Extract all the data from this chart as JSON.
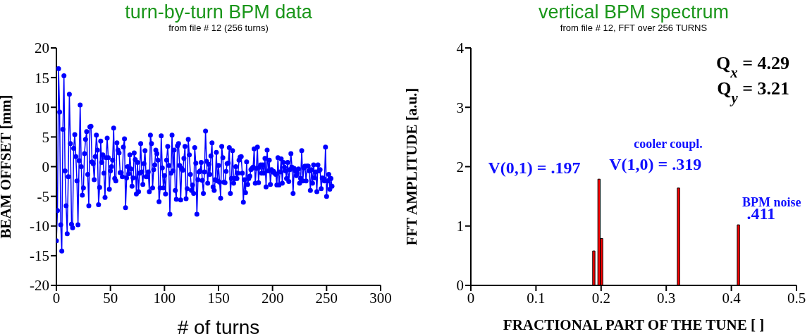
{
  "chart_data": [
    {
      "type": "line",
      "title": "turn-by-turn BPM data",
      "subtitle": "from file # 12 (256 turns)",
      "xlabel": "# of turns",
      "ylabel": "BEAM OFFSET  [mm]",
      "x": [
        0,
        1,
        2,
        3,
        4,
        5,
        6,
        7,
        8,
        9,
        10,
        11,
        12,
        13,
        14,
        15,
        16,
        17,
        18,
        19,
        20,
        21,
        22,
        23,
        24,
        25,
        26,
        27,
        28,
        29,
        30,
        31,
        32,
        33,
        34,
        35,
        36,
        37,
        38,
        39,
        40,
        41,
        42,
        43,
        44,
        45,
        46,
        47,
        48,
        49,
        50,
        51,
        52,
        53,
        54,
        55,
        56,
        57,
        58,
        59,
        60,
        61,
        62,
        63,
        64,
        65,
        66,
        67,
        68,
        69,
        70,
        71,
        72,
        73,
        74,
        75,
        76,
        77,
        78,
        79,
        80,
        81,
        82,
        83,
        84,
        85,
        86,
        87,
        88,
        89,
        90,
        91,
        92,
        93,
        94,
        95,
        96,
        97,
        98,
        99,
        100,
        101,
        102,
        103,
        104,
        105,
        106,
        107,
        108,
        109,
        110,
        111,
        112,
        113,
        114,
        115,
        116,
        117,
        118,
        119,
        120,
        121,
        122,
        123,
        124,
        125,
        126,
        127,
        128,
        129,
        130,
        131,
        132,
        133,
        134,
        135,
        136,
        137,
        138,
        139,
        140,
        141,
        142,
        143,
        144,
        145,
        146,
        147,
        148,
        149,
        150,
        151,
        152,
        153,
        154,
        155,
        156,
        157,
        158,
        159,
        160,
        161,
        162,
        163,
        164,
        165,
        166,
        167,
        168,
        169,
        170,
        171,
        172,
        173,
        174,
        175,
        176,
        177,
        178,
        179,
        180,
        181,
        182,
        183,
        184,
        185,
        186,
        187,
        188,
        189,
        190,
        191,
        192,
        193,
        194,
        195,
        196,
        197,
        198,
        199,
        200,
        201,
        202,
        203,
        204,
        205,
        206,
        207,
        208,
        209,
        210,
        211,
        212,
        213,
        214,
        215,
        216,
        217,
        218,
        219,
        220,
        221,
        222,
        223,
        224,
        225,
        226,
        227,
        228,
        229,
        230,
        231,
        232,
        233,
        234,
        235,
        236,
        237,
        238,
        239,
        240,
        241,
        242,
        243,
        244,
        245,
        246,
        247,
        248,
        249,
        250,
        251,
        252,
        253,
        254,
        255
      ],
      "series": [
        {
          "color": "#0000ff",
          "values": [
            -12.5,
            -7.4,
            16.5,
            9.2,
            -9.8,
            -14.2,
            6.3,
            15.3,
            -0.7,
            -6.6,
            -11.3,
            -1.7,
            12.2,
            3.9,
            -9.7,
            -10.3,
            3.1,
            5.4,
            1.7,
            -2.4,
            -9.8,
            1.0,
            10.4,
            0.0,
            -4.8,
            -3.6,
            2.2,
            4.6,
            5.9,
            -1.3,
            -6.6,
            6.7,
            6.8,
            0.8,
            0.5,
            -2.2,
            1.7,
            5.3,
            2.8,
            -6.4,
            -3.5,
            4.3,
            0.7,
            2.0,
            -1.1,
            -5.2,
            1.5,
            4.8,
            1.5,
            -3.8,
            -0.7,
            0.0,
            1.1,
            6.5,
            -2.0,
            -2.4,
            4.0,
            2.8,
            2.3,
            -1.0,
            -1.0,
            -1.7,
            3.3,
            4.7,
            -6.9,
            -1.9,
            0.0,
            -1.2,
            2.0,
            -0.4,
            -3.3,
            -1.9,
            2.3,
            1.2,
            -4.6,
            0.7,
            -4.2,
            -1.1,
            3.9,
            -0.9,
            -3.0,
            0.5,
            2.7,
            -1.7,
            -1.7,
            -0.9,
            -4.2,
            5.3,
            3.9,
            -3.6,
            -0.5,
            0.3,
            2.8,
            2.2,
            1.1,
            -5.9,
            -3.6,
            5.2,
            -0.2,
            -3.6,
            -1.5,
            -4.6,
            1.1,
            3.4,
            0.2,
            -8.0,
            -1.1,
            5.3,
            -0.7,
            2.8,
            -4.0,
            -5.5,
            3.5,
            3.9,
            0.2,
            -5.6,
            -0.3,
            -0.6,
            1.4,
            3.4,
            -5.4,
            -3.7,
            4.6,
            2.0,
            -1.3,
            -4.0,
            -3.1,
            -4.5,
            3.2,
            0.6,
            -8.0,
            -2.2,
            -0.9,
            -0.7,
            0.7,
            -2.3,
            -4.5,
            -0.9,
            6.0,
            0.9,
            -2.8,
            0.4,
            -1.3,
            1.8,
            4.0,
            -3.4,
            -4.0,
            -2.2,
            2.4,
            -2.4,
            0.2,
            -2.6,
            -5.3,
            3.4,
            1.5,
            -2.6,
            -2.7,
            -0.8,
            0.5,
            0.6,
            3.2,
            -4.5,
            -2.0,
            2.7,
            -2.8,
            -2.0,
            0.0,
            -2.0,
            -1.1,
            1.1,
            1.6,
            1.7,
            -1.1,
            -6.0,
            -2.2,
            -4.4,
            0.8,
            -3.0,
            -2.0,
            -1.6,
            -0.5,
            -0.3,
            -0.1,
            3.0,
            -2.8,
            -0.3,
            3.3,
            -2.7,
            -0.1,
            0.3,
            -1.1,
            0.3,
            -1.1,
            1.4,
            -3.4,
            2.8,
            -0.7,
            1.1,
            -3.0,
            -0.5,
            -0.9,
            -0.8,
            -1.1,
            -1.3,
            -3.1,
            1.5,
            -3.1,
            -0.9,
            1.3,
            -2.8,
            0.7,
            -0.1,
            -0.7,
            -2.0,
            0.7,
            -2.5,
            -0.5,
            2.2,
            -0.1,
            -4.5,
            -0.3,
            -0.7,
            -1.5,
            -1.1,
            -0.4,
            -2.8,
            -2.0,
            2.7,
            -2.4,
            -0.2,
            0.1,
            -2.4,
            0.1,
            0.1,
            -0.7,
            -4.0,
            -0.5,
            -2.8,
            0.3,
            -1.9,
            -0.9,
            -4.2,
            0.3,
            -0.7,
            -0.5,
            -3.7,
            -1.9,
            -2.0,
            -2.4,
            3.3,
            -5.0,
            -2.4,
            -1.3,
            -3.8,
            -2.0,
            -3.3
          ]
        }
      ],
      "marker": "circle",
      "xlim": [
        0,
        300
      ],
      "xticks": [
        0,
        50,
        100,
        150,
        200,
        250,
        300
      ],
      "ylim": [
        -20,
        20
      ],
      "yticks": [
        -20,
        -15,
        -10,
        -5,
        0,
        5,
        10,
        15,
        20
      ]
    },
    {
      "type": "bar",
      "title": "vertical BPM spectrum",
      "subtitle": "from file # 12, FFT over 256 TURNS",
      "xlabel": "FRACTIONAL PART OF THE TUNE [ ]",
      "ylabel": "FFT AMPLITUDE  [a.u.]",
      "x": [
        0.189,
        0.197,
        0.201,
        0.319,
        0.411
      ],
      "series": [
        {
          "color": "#ff0000",
          "values": [
            0.58,
            1.79,
            0.79,
            1.64,
            1.02
          ]
        }
      ],
      "xlim": [
        0,
        0.5
      ],
      "xticks": [
        0,
        0.1,
        0.2,
        0.3,
        0.4,
        0.5
      ],
      "ylim": [
        0,
        4
      ],
      "yticks": [
        0,
        1,
        2,
        3,
        4
      ],
      "annotations": [
        "Q$_{x}$ = 4.29",
        "Q$_{y}$ = 3.21",
        {
          "text": "V(0,1) = .197",
          "x": 0.197,
          "y": 1.79
        },
        "cooler coupl.",
        {
          "text": "V(1,0) = .319",
          "x": 0.319,
          "y": 1.64
        },
        {
          "text": "BPM noise",
          "x": 0.411,
          "y": 1.02
        },
        {
          "text": ".411",
          "x": 0.411,
          "y": 1.02
        }
      ]
    }
  ]
}
